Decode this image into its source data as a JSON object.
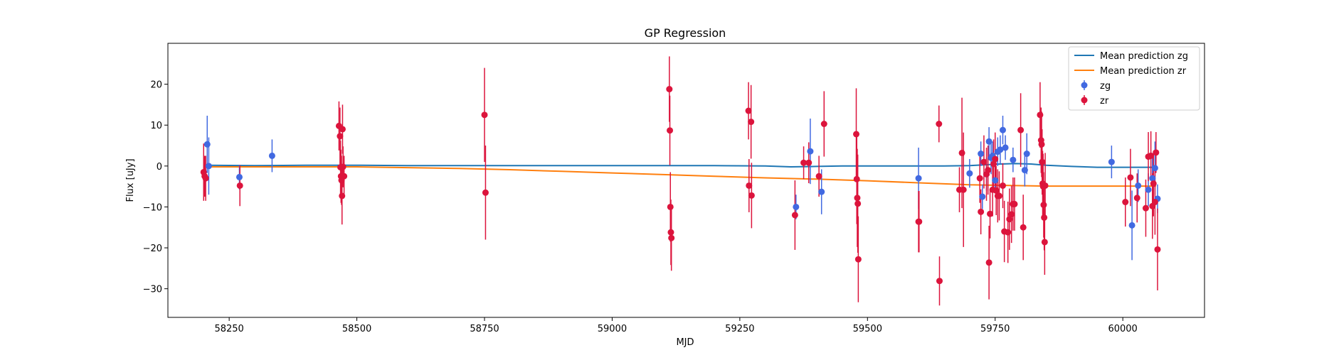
{
  "chart_data": {
    "type": "scatter",
    "title": "GP Regression",
    "xlabel": "MJD",
    "ylabel": "Flux [uJy]",
    "xlim": [
      58130,
      60160
    ],
    "ylim": [
      -37,
      30
    ],
    "xticks": [
      58250,
      58500,
      58750,
      59000,
      59250,
      59500,
      59750,
      60000
    ],
    "yticks": [
      20,
      10,
      0,
      -10,
      -20,
      -30
    ],
    "ytick_labels": [
      "20",
      "10",
      "0",
      "−10",
      "−20",
      "−30"
    ],
    "grid": false,
    "legend": "top-right",
    "legend_entries": [
      "Mean prediction zg",
      "Mean prediction zr",
      "zg",
      "zr"
    ],
    "series": [
      {
        "name": "Mean prediction zg",
        "kind": "line",
        "color": "#1f77b4",
        "x": [
          58200,
          58300,
          58400,
          58500,
          58600,
          58700,
          58800,
          58900,
          59000,
          59100,
          59200,
          59300,
          59350,
          59400,
          59450,
          59500,
          59550,
          59600,
          59650,
          59700,
          59730,
          59760,
          59790,
          59820,
          59850,
          59900,
          59950,
          60000,
          60050,
          60065
        ],
        "y": [
          0.2,
          0.1,
          0.2,
          0.2,
          0.1,
          0.1,
          0.1,
          0.1,
          0.1,
          0.1,
          0.1,
          0.0,
          -0.2,
          -0.1,
          0.0,
          0.0,
          0.0,
          0.0,
          0.0,
          0.1,
          0.3,
          0.5,
          0.6,
          0.5,
          0.2,
          -0.1,
          -0.3,
          -0.3,
          -0.3,
          -0.3
        ]
      },
      {
        "name": "Mean prediction zr",
        "kind": "line",
        "color": "#ff7f0e",
        "x": [
          58200,
          58300,
          58400,
          58500,
          58600,
          58700,
          58800,
          58900,
          59000,
          59100,
          59200,
          59300,
          59400,
          59500,
          59600,
          59700,
          59800,
          59850,
          59900,
          60000,
          60065
        ],
        "y": [
          -0.2,
          -0.2,
          -0.2,
          -0.2,
          -0.4,
          -0.6,
          -0.9,
          -1.3,
          -1.7,
          -2.1,
          -2.5,
          -2.9,
          -3.2,
          -3.6,
          -4.1,
          -4.6,
          -4.8,
          -4.9,
          -4.9,
          -4.9,
          -4.9
        ]
      },
      {
        "name": "zg",
        "kind": "errorbar",
        "color": "#4169e1",
        "x": [
          58207,
          58210,
          58270,
          58334,
          59360,
          59388,
          59410,
          59600,
          59700,
          59722,
          59725,
          59733,
          59738,
          59742,
          59745,
          59750,
          59755,
          59760,
          59765,
          59770,
          59785,
          59808,
          59812,
          59978,
          60018,
          60030,
          60050,
          60058,
          60063,
          60068
        ],
        "y": [
          5.3,
          0.0,
          -2.7,
          2.5,
          -10.0,
          3.6,
          -6.3,
          -3.0,
          -1.8,
          3.0,
          -7.5,
          -2.0,
          6.0,
          2.0,
          2.5,
          -3.5,
          3.5,
          4.0,
          8.8,
          4.5,
          1.5,
          -1.0,
          3.0,
          1.0,
          -14.5,
          -4.8,
          -5.8,
          -3.0,
          -0.5,
          -8.0
        ],
        "err": [
          7.0,
          7.0,
          3.0,
          4.0,
          3.0,
          8.0,
          5.5,
          7.5,
          3.5,
          3.0,
          3.0,
          4.0,
          3.5,
          4.0,
          3.5,
          3.0,
          3.5,
          3.5,
          3.5,
          3.0,
          3.0,
          4.0,
          5.0,
          4.0,
          8.5,
          4.0,
          4.0,
          6.0,
          6.5,
          3.5
        ]
      },
      {
        "name": "zr",
        "kind": "errorbar",
        "color": "#dc143c",
        "x": [
          58200,
          58202,
          58204,
          58271,
          58465,
          58467,
          58468,
          58469,
          58470,
          58471,
          58472,
          58473,
          58475,
          58750,
          58752,
          59112,
          59113,
          59114,
          59115,
          59116,
          59267,
          59268,
          59272,
          59273,
          59358,
          59375,
          59385,
          59405,
          59415,
          59478,
          59479,
          59480,
          59481,
          59482,
          59600,
          59601,
          59640,
          59641,
          59680,
          59685,
          59688,
          59720,
          59722,
          59728,
          59733,
          59736,
          59738,
          59740,
          59745,
          59747,
          59750,
          59752,
          59755,
          59758,
          59765,
          59768,
          59775,
          59778,
          59782,
          59785,
          59788,
          59800,
          59805,
          59838,
          59840,
          59841,
          59842,
          59843,
          59844,
          59845,
          59846,
          59847,
          59848,
          60005,
          60015,
          60028,
          60045,
          60050,
          60055,
          60058,
          60060,
          60063,
          60065,
          60068
        ],
        "y": [
          -1.5,
          -2.5,
          -3.0,
          -4.8,
          9.8,
          7.3,
          -0.3,
          -2.5,
          -3.5,
          -7.3,
          9.0,
          -0.2,
          -2.5,
          12.5,
          -6.5,
          18.8,
          8.7,
          -10.0,
          -16.2,
          -17.6,
          13.5,
          -4.8,
          10.8,
          -7.2,
          -12.0,
          0.8,
          0.8,
          -2.5,
          10.3,
          7.8,
          -3.2,
          -7.8,
          -9.2,
          -22.8,
          -13.6,
          -13.6,
          10.3,
          -28.1,
          -5.8,
          3.2,
          -5.8,
          -3.0,
          -11.2,
          1.0,
          -2.0,
          -1.0,
          -23.6,
          -11.7,
          -5.8,
          0.5,
          1.7,
          -6.0,
          -7.3,
          -7.3,
          -4.8,
          -16.0,
          -16.2,
          -13.0,
          -11.8,
          -9.3,
          -9.3,
          8.8,
          -15.0,
          12.5,
          6.3,
          5.3,
          1.0,
          -4.3,
          -5.0,
          -9.5,
          -12.6,
          -18.6,
          -4.8,
          -8.8,
          -2.8,
          -7.8,
          -10.3,
          2.3,
          2.5,
          -9.8,
          -4.3,
          -8.8,
          3.3,
          -20.4
        ],
        "err": [
          7.0,
          5.0,
          5.5,
          5.0,
          6.0,
          7.0,
          6.5,
          6.5,
          6.0,
          7.0,
          6.0,
          5.0,
          5.0,
          11.5,
          11.5,
          8.0,
          8.5,
          8.5,
          8.0,
          8.0,
          7.0,
          6.5,
          9.0,
          8.0,
          8.5,
          4.0,
          5.0,
          5.0,
          8.0,
          11.2,
          11.0,
          12.0,
          12.0,
          10.5,
          7.5,
          7.5,
          4.5,
          6.0,
          5.5,
          13.5,
          14.0,
          6.0,
          5.5,
          6.5,
          6.5,
          6.0,
          9.0,
          6.0,
          6.5,
          6.0,
          6.5,
          6.0,
          6.5,
          6.0,
          5.5,
          7.5,
          7.5,
          7.5,
          7.0,
          6.5,
          6.5,
          9.0,
          8.0,
          8.0,
          8.0,
          8.0,
          8.0,
          8.0,
          8.0,
          8.0,
          8.0,
          8.0,
          8.0,
          6.0,
          7.0,
          6.0,
          7.0,
          6.0,
          6.0,
          8.0,
          8.0,
          8.0,
          5.0,
          10.0
        ]
      }
    ]
  }
}
